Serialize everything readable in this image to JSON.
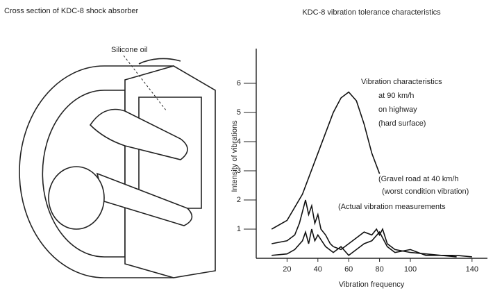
{
  "diagram": {
    "title": "Cross section of KDC-8 shock absorber",
    "labels": [
      "Silicone oil"
    ]
  },
  "chart_data": {
    "type": "line",
    "title": "KDC-8 vibration tolerance characteristics",
    "x_label": "Vibration frequency",
    "y_label": "Intensity of vibrations",
    "xlim": [
      0,
      150
    ],
    "ylim": [
      0,
      7
    ],
    "xticks": [
      20,
      40,
      60,
      80,
      100,
      140
    ],
    "yticks": [
      1,
      2,
      3,
      4,
      5,
      6
    ],
    "grid": false,
    "series": [
      {
        "name": "Vibration characteristics",
        "color": "#111111",
        "x": [
          10,
          20,
          30,
          40,
          50,
          55,
          60,
          65,
          70,
          75,
          80
        ],
        "values": [
          1.0,
          1.3,
          2.2,
          3.6,
          5.0,
          5.5,
          5.7,
          5.4,
          4.6,
          3.6,
          2.9
        ]
      },
      {
        "name": "(Gravel road at 40 km/h",
        "color": "#111111",
        "x": [
          10,
          20,
          25,
          28,
          30,
          32,
          34,
          36,
          38,
          40,
          42,
          45,
          48,
          50,
          55,
          60,
          65,
          70,
          75,
          78,
          80,
          82,
          85,
          90,
          100,
          110,
          120,
          130,
          140
        ],
        "values": [
          0.5,
          0.6,
          0.8,
          1.2,
          1.6,
          2.0,
          1.5,
          1.8,
          1.2,
          1.5,
          1.0,
          0.8,
          0.5,
          0.4,
          0.3,
          0.5,
          0.7,
          0.9,
          0.8,
          1.0,
          0.8,
          1.0,
          0.5,
          0.3,
          0.2,
          0.15,
          0.1,
          0.1,
          0.05
        ]
      },
      {
        "name": "(Actual vibration measurements",
        "color": "#111111",
        "x": [
          10,
          20,
          25,
          30,
          32,
          34,
          36,
          38,
          40,
          45,
          50,
          55,
          60,
          65,
          70,
          75,
          80,
          85,
          90,
          100,
          110,
          120,
          130
        ],
        "values": [
          0.1,
          0.15,
          0.3,
          0.6,
          0.9,
          0.5,
          1.0,
          0.6,
          0.8,
          0.4,
          0.2,
          0.4,
          0.1,
          0.3,
          0.5,
          0.6,
          0.9,
          0.4,
          0.2,
          0.3,
          0.1,
          0.1,
          0.05
        ]
      }
    ],
    "annotations": [
      "at 90 km/h",
      "on highway",
      "(hard surface)",
      "(worst condition vibration)"
    ]
  }
}
